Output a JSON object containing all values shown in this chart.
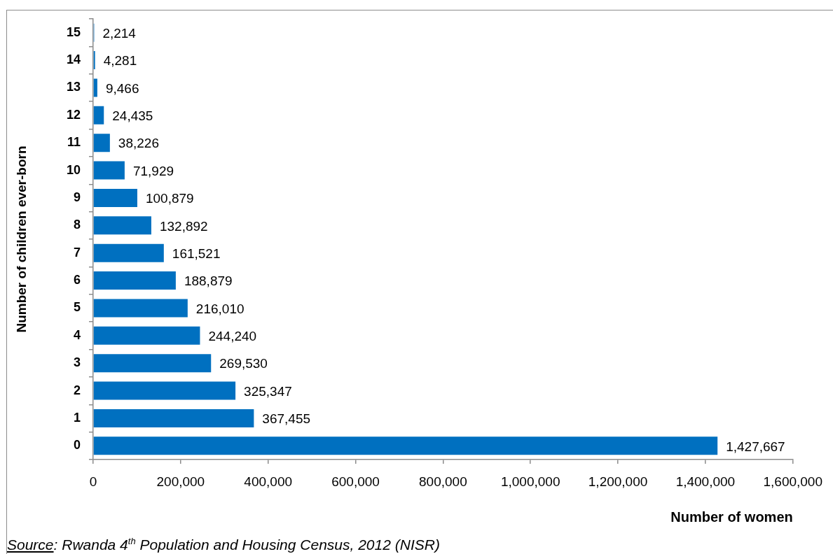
{
  "chart_data": {
    "type": "bar",
    "orientation": "horizontal",
    "xlabel": "Number of women",
    "ylabel": "Number of children ever-born",
    "categories": [
      "15",
      "14",
      "13",
      "12",
      "11",
      "10",
      "9",
      "8",
      "7",
      "6",
      "5",
      "4",
      "3",
      "2",
      "1",
      "0"
    ],
    "values": [
      2214,
      4281,
      9466,
      24435,
      38226,
      71929,
      100879,
      132892,
      161521,
      188879,
      216010,
      244240,
      269530,
      325347,
      367455,
      1427667
    ],
    "value_labels": [
      "2,214",
      "4,281",
      "9,466",
      "24,435",
      "38,226",
      "71,929",
      "100,879",
      "132,892",
      "161,521",
      "188,879",
      "216,010",
      "244,240",
      "269,530",
      "325,347",
      "367,455",
      "1,427,667"
    ],
    "color": "#0070c0",
    "xlim": [
      0,
      1600000
    ],
    "xticks": [
      0,
      {
        "value": 200000,
        "label": "200,000"
      },
      {
        "value": 400000,
        "label": "400,000"
      },
      {
        "value": 600000,
        "label": "600,000"
      },
      {
        "value": 800000,
        "label": "800,000"
      },
      {
        "value": 1000000,
        "label": "1,000,000"
      },
      {
        "value": 1200000,
        "label": "1,200,000"
      },
      {
        "value": 1400000,
        "label": "1,400,000"
      },
      {
        "value": 1600000,
        "label": "1,600,000"
      }
    ],
    "grid": false,
    "annotations": [
      "Source: Rwanda 4$^{th}$ Population and Housing Census, 2012 (NISR)"
    ]
  }
}
